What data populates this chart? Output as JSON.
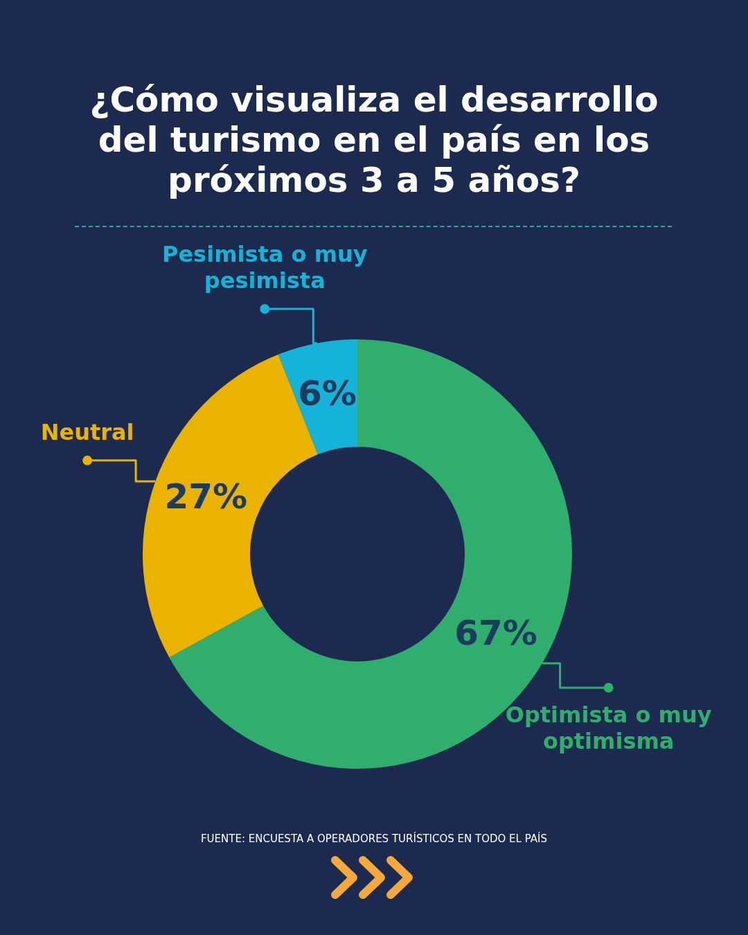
{
  "chart_data": {
    "type": "donut",
    "title": "¿Cómo visualiza el desarrollo del turismo en el país en los próximos 3 a 5 años?",
    "categories": [
      "Optimista o muy optimisma",
      "Neutral",
      "Pesimista o muy pesimista"
    ],
    "values": [
      67,
      27,
      6
    ],
    "colors": [
      "#2fae6e",
      "#e9b300",
      "#16b3d8"
    ],
    "value_labels": [
      "67%",
      "27%",
      "6%"
    ],
    "annotations": [
      "FUENTE: ENCUESTA A OPERADORES TURÍSTICOS EN TODO EL PAÍS"
    ]
  }
}
